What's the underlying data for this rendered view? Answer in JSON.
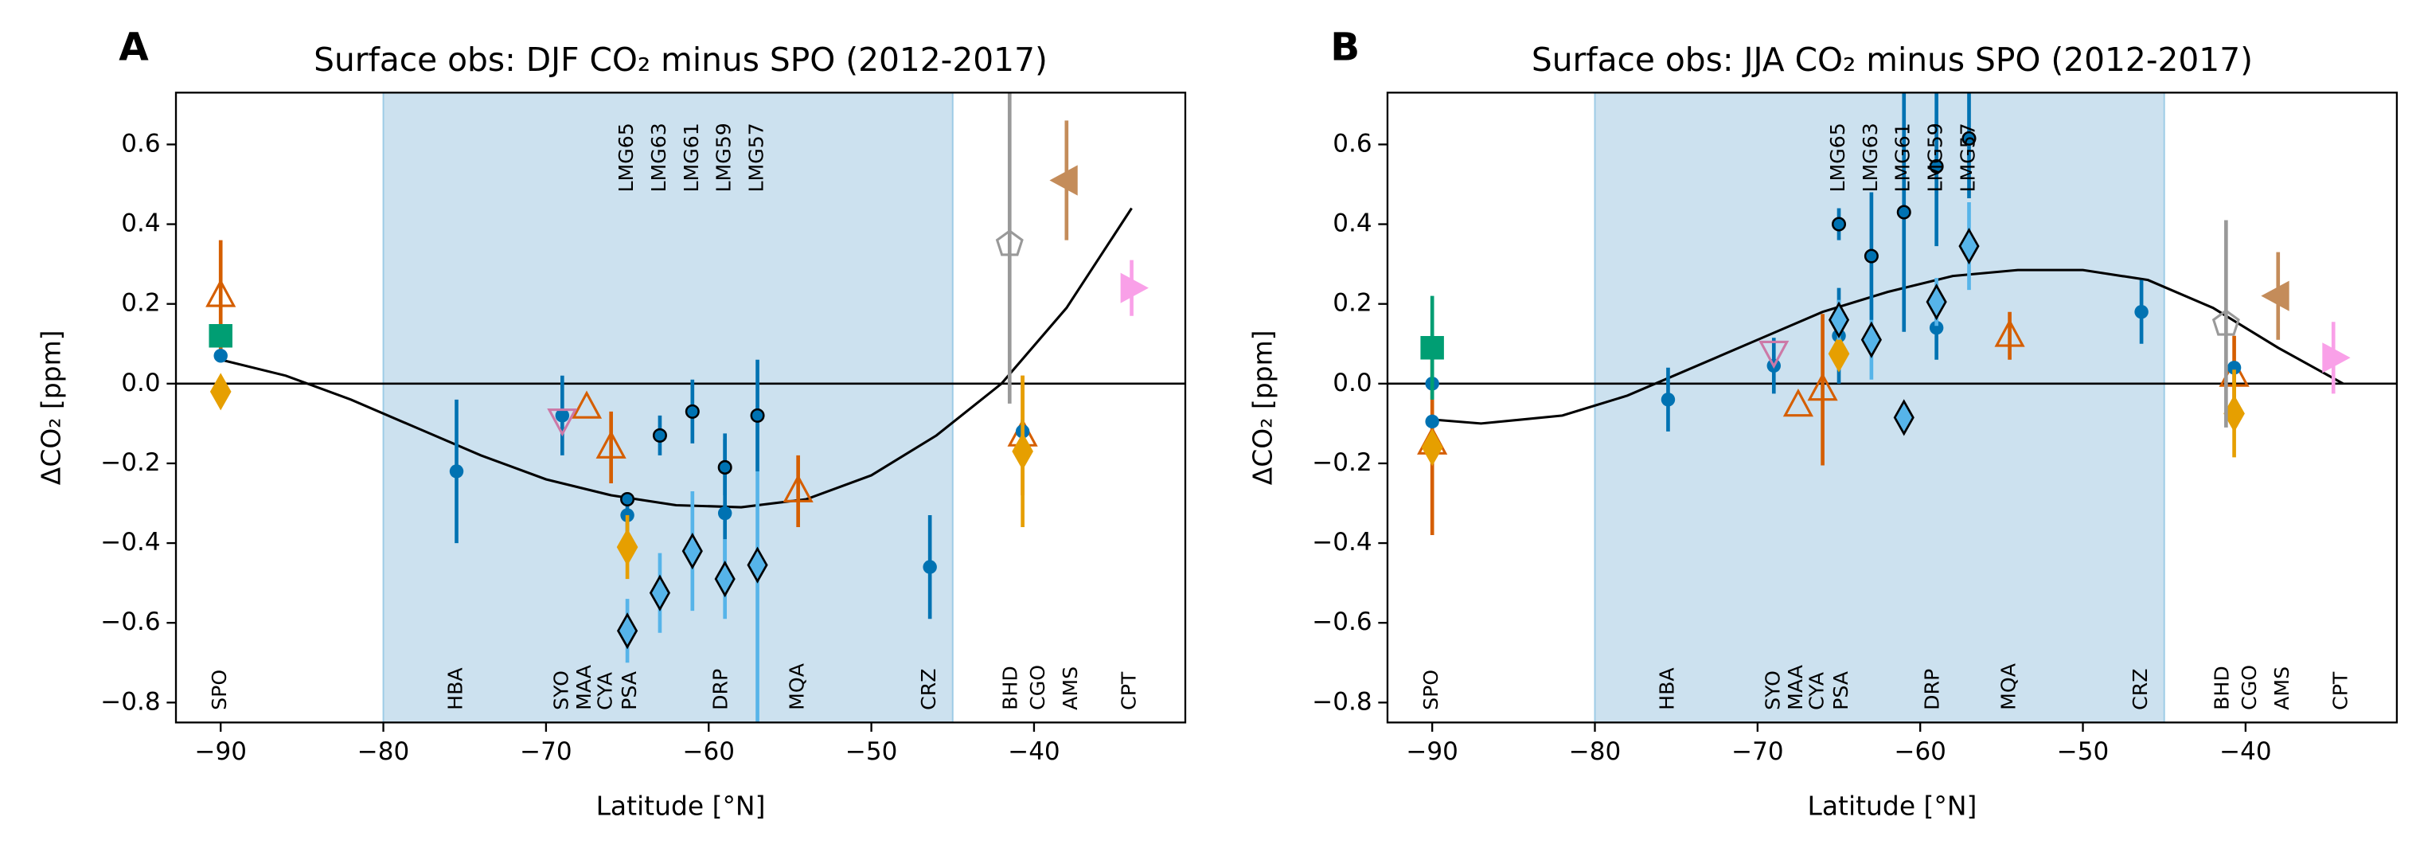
{
  "chart_data": [
    {
      "type": "scatter",
      "label": "A",
      "title": "Surface obs: DJF CO₂ minus SPO (2012-2017)",
      "x_label": "Latitude [°N]",
      "y_label": "ΔCO₂ [ppm]",
      "xlim": [
        -92.75,
        -30.7
      ],
      "ylim": [
        -0.85,
        0.73
      ],
      "xticks": [
        {
          "value": -90,
          "label": "−90"
        },
        {
          "value": -80,
          "label": "−80"
        },
        {
          "value": -70,
          "label": "−70"
        },
        {
          "value": -60,
          "label": "−60"
        },
        {
          "value": -50,
          "label": "−50"
        },
        {
          "value": -40,
          "label": "−40"
        }
      ],
      "yticks": [
        {
          "value": -0.8,
          "label": "−0.8"
        },
        {
          "value": -0.6,
          "label": "−0.6"
        },
        {
          "value": -0.4,
          "label": "−0.4"
        },
        {
          "value": -0.2,
          "label": "−0.2"
        },
        {
          "value": 0,
          "label": "0.0"
        },
        {
          "value": 0.2,
          "label": "0.2"
        },
        {
          "value": 0.4,
          "label": "0.4"
        },
        {
          "value": 0.6,
          "label": "0.6"
        }
      ],
      "shade": [
        -80,
        -45
      ],
      "shade_color": "#cce1ef",
      "hline": 0,
      "station_labels": [
        {
          "text": "SPO",
          "x": -90
        },
        {
          "text": "HBA",
          "x": -75.5
        },
        {
          "text": "SYO",
          "x": -69
        },
        {
          "text": "MAA",
          "x": -67.6
        },
        {
          "text": "CYA",
          "x": -66.3
        },
        {
          "text": "PSA",
          "x": -64.8
        },
        {
          "text": "DRP",
          "x": -59.2
        },
        {
          "text": "MQA",
          "x": -54.5
        },
        {
          "text": "CRZ",
          "x": -46.4
        },
        {
          "text": "BHD",
          "x": -41.4
        },
        {
          "text": "CGO",
          "x": -39.7
        },
        {
          "text": "AMS",
          "x": -37.7
        },
        {
          "text": "CPT",
          "x": -34.1
        }
      ],
      "ship_labels": [
        {
          "text": "LMG65",
          "x": -65
        },
        {
          "text": "LMG63",
          "x": -63
        },
        {
          "text": "LMG61",
          "x": -61
        },
        {
          "text": "LMG59",
          "x": -59
        },
        {
          "text": "LMG57",
          "x": -57
        }
      ],
      "fit": {
        "color": "#000000",
        "x": [
          -90,
          -86,
          -82,
          -78,
          -74,
          -70,
          -66,
          -62,
          -58,
          -54,
          -50,
          -46,
          -42,
          -38,
          -34
        ],
        "values": [
          0.06,
          0.02,
          -0.04,
          -0.11,
          -0.18,
          -0.24,
          -0.28,
          -0.305,
          -0.31,
          -0.29,
          -0.23,
          -0.13,
          0.0,
          0.19,
          0.44
        ]
      },
      "series": [
        {
          "marker": "triangle-up",
          "filled": false,
          "color": "#d55e00",
          "x": [
            -90,
            -67.5,
            -66,
            -54.5,
            -40.7
          ],
          "values": [
            0.22,
            -0.06,
            -0.16,
            -0.27,
            -0.13
          ],
          "errors": [
            0.14,
            null,
            0.09,
            0.09,
            0.15
          ]
        },
        {
          "marker": "circle",
          "filled": true,
          "color": "#0072b2",
          "x": [
            -90,
            -75.5,
            -69,
            -65,
            -59,
            -46.4,
            -40.7
          ],
          "values": [
            0.07,
            -0.22,
            -0.08,
            -0.33,
            -0.325,
            -0.46,
            -0.12
          ],
          "errors": [
            null,
            0.18,
            0.1,
            0.05,
            0.2,
            0.13,
            0.03
          ]
        },
        {
          "marker": "diamond",
          "filled": true,
          "color": "#e69f00",
          "x": [
            -90,
            -65,
            -40.7
          ],
          "values": [
            -0.02,
            -0.41,
            -0.17
          ],
          "errors": [
            null,
            0.08,
            0.19
          ]
        },
        {
          "marker": "square",
          "filled": true,
          "color": "#009e73",
          "x": [
            -90
          ],
          "values": [
            0.12
          ],
          "errors": [
            null
          ]
        },
        {
          "marker": "triangle-down",
          "filled": false,
          "color": "#cc79a7",
          "x": [
            -69
          ],
          "values": [
            -0.09
          ],
          "errors": [
            null
          ]
        },
        {
          "marker": "diamond",
          "filled": true,
          "edge": "#000000",
          "color": "#56b4e9",
          "x": [
            -65,
            -63,
            -61,
            -59,
            -57
          ],
          "values": [
            -0.62,
            -0.525,
            -0.42,
            -0.49,
            -0.455
          ],
          "errors": [
            0.08,
            0.1,
            0.15,
            0.1,
            0.4
          ]
        },
        {
          "marker": "small-circle",
          "filled": true,
          "edge": "#000000",
          "color": "#0072b2",
          "x": [
            -65,
            -63,
            -61,
            -59,
            -57
          ],
          "values": [
            -0.29,
            -0.13,
            -0.07,
            -0.21,
            -0.08
          ],
          "errors": [
            null,
            0.05,
            0.08,
            0.07,
            0.14
          ]
        },
        {
          "marker": "pentagon",
          "filled": false,
          "color": "#999999",
          "x": [
            -41.5
          ],
          "values": [
            0.35
          ],
          "errors": [
            0.4
          ]
        },
        {
          "marker": "triangle-left",
          "filled": true,
          "color": "#c48c5a",
          "x": [
            -38
          ],
          "values": [
            0.51
          ],
          "errors": [
            0.15
          ]
        },
        {
          "marker": "triangle-right",
          "filled": true,
          "color": "#f9a0e8",
          "x": [
            -34
          ],
          "values": [
            0.24
          ],
          "errors": [
            0.07
          ]
        }
      ]
    },
    {
      "type": "scatter",
      "label": "B",
      "title": "Surface obs: JJA CO₂ minus SPO (2012-2017)",
      "x_label": "Latitude [°N]",
      "y_label": "ΔCO₂ [ppm]",
      "xlim": [
        -92.75,
        -30.7
      ],
      "ylim": [
        -0.85,
        0.73
      ],
      "xticks": [
        {
          "value": -90,
          "label": "−90"
        },
        {
          "value": -80,
          "label": "−80"
        },
        {
          "value": -70,
          "label": "−70"
        },
        {
          "value": -60,
          "label": "−60"
        },
        {
          "value": -50,
          "label": "−50"
        },
        {
          "value": -40,
          "label": "−40"
        }
      ],
      "yticks": [
        {
          "value": -0.8,
          "label": "−0.8"
        },
        {
          "value": -0.6,
          "label": "−0.6"
        },
        {
          "value": -0.4,
          "label": "−0.4"
        },
        {
          "value": -0.2,
          "label": "−0.2"
        },
        {
          "value": 0,
          "label": "0.0"
        },
        {
          "value": 0.2,
          "label": "0.2"
        },
        {
          "value": 0.4,
          "label": "0.4"
        },
        {
          "value": 0.6,
          "label": "0.6"
        }
      ],
      "shade": [
        -80,
        -45
      ],
      "shade_color": "#cce1ef",
      "hline": 0,
      "station_labels": [
        {
          "text": "SPO",
          "x": -90
        },
        {
          "text": "HBA",
          "x": -75.5
        },
        {
          "text": "SYO",
          "x": -69
        },
        {
          "text": "MAA",
          "x": -67.6
        },
        {
          "text": "CYA",
          "x": -66.3
        },
        {
          "text": "PSA",
          "x": -64.8
        },
        {
          "text": "DRP",
          "x": -59.2
        },
        {
          "text": "MQA",
          "x": -54.5
        },
        {
          "text": "CRZ",
          "x": -46.4
        },
        {
          "text": "BHD",
          "x": -41.4
        },
        {
          "text": "CGO",
          "x": -39.7
        },
        {
          "text": "AMS",
          "x": -37.7
        },
        {
          "text": "CPT",
          "x": -34.1
        }
      ],
      "ship_labels": [
        {
          "text": "LMG65",
          "x": -65
        },
        {
          "text": "LMG63",
          "x": -63
        },
        {
          "text": "LMG61",
          "x": -61
        },
        {
          "text": "LMG59",
          "x": -59
        },
        {
          "text": "LMG57",
          "x": -57
        }
      ],
      "fit": {
        "color": "#000000",
        "x": [
          -90,
          -87,
          -82,
          -78,
          -74,
          -70,
          -66,
          -62,
          -58,
          -54,
          -50,
          -46,
          -42,
          -38,
          -34
        ],
        "values": [
          -0.09,
          -0.1,
          -0.08,
          -0.03,
          0.04,
          0.11,
          0.18,
          0.23,
          0.27,
          0.285,
          0.285,
          0.26,
          0.19,
          0.09,
          0.0
        ]
      },
      "series": [
        {
          "marker": "triangle-up",
          "filled": false,
          "color": "#d55e00",
          "x": [
            -90,
            -67.5,
            -66,
            -54.5,
            -40.7
          ],
          "values": [
            -0.15,
            -0.055,
            -0.015,
            0.12,
            0.02
          ],
          "errors": [
            0.23,
            null,
            0.19,
            0.06,
            0.1
          ]
        },
        {
          "marker": "circle",
          "filled": true,
          "color": "#0072b2",
          "x": [
            -90,
            -90,
            -75.5,
            -69,
            -65,
            -59,
            -46.4,
            -40.7
          ],
          "values": [
            0.0,
            -0.095,
            -0.04,
            0.045,
            0.12,
            0.14,
            0.18,
            0.04
          ],
          "errors": [
            null,
            null,
            0.08,
            0.07,
            0.12,
            0.08,
            0.08,
            null
          ]
        },
        {
          "marker": "diamond",
          "filled": true,
          "color": "#e69f00",
          "x": [
            -90,
            -65,
            -40.7
          ],
          "values": [
            -0.16,
            0.075,
            -0.075
          ],
          "errors": [
            null,
            null,
            0.11
          ]
        },
        {
          "marker": "square",
          "filled": true,
          "color": "#009e73",
          "x": [
            -90
          ],
          "values": [
            0.09
          ],
          "errors": [
            0.13
          ]
        },
        {
          "marker": "triangle-down",
          "filled": false,
          "color": "#cc79a7",
          "x": [
            -69
          ],
          "values": [
            0.08
          ],
          "errors": [
            null
          ]
        },
        {
          "marker": "diamond",
          "filled": true,
          "edge": "#000000",
          "color": "#56b4e9",
          "x": [
            -65,
            -63,
            -61,
            -59,
            -57
          ],
          "values": [
            0.16,
            0.11,
            -0.085,
            0.205,
            0.345
          ],
          "errors": [
            0.05,
            0.1,
            null,
            0.06,
            0.11
          ]
        },
        {
          "marker": "small-circle",
          "filled": true,
          "edge": "#000000",
          "color": "#0072b2",
          "x": [
            -65,
            -63,
            -61,
            -59,
            -57
          ],
          "values": [
            0.4,
            0.32,
            0.43,
            0.545,
            0.615
          ],
          "errors": [
            0.04,
            0.16,
            0.3,
            0.2,
            0.15
          ]
        },
        {
          "marker": "pentagon",
          "filled": false,
          "color": "#999999",
          "x": [
            -41.2
          ],
          "values": [
            0.15
          ],
          "errors": [
            0.26
          ]
        },
        {
          "marker": "triangle-left",
          "filled": true,
          "color": "#c48c5a",
          "x": [
            -38
          ],
          "values": [
            0.22
          ],
          "errors": [
            0.11
          ]
        },
        {
          "marker": "triangle-right",
          "filled": true,
          "color": "#f9a0e8",
          "x": [
            -34.6
          ],
          "values": [
            0.065
          ],
          "errors": [
            0.09
          ]
        }
      ]
    }
  ]
}
